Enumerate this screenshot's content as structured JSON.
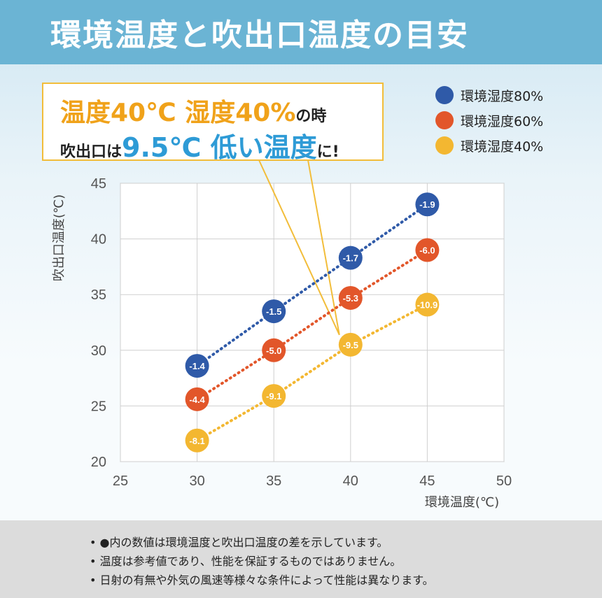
{
  "header": {
    "title": "環境温度と吹出口温度の目安"
  },
  "callout": {
    "line1_highlight": "温度40℃ 湿度40%",
    "line1_tail": "の時",
    "line2_head": "吹出口は",
    "line2_highlight": "9.5℃ 低い温度",
    "line2_tail": "に!"
  },
  "legend": [
    {
      "label": "環境湿度80%",
      "color": "#2f5aa8"
    },
    {
      "label": "環境湿度60%",
      "color": "#e2562a"
    },
    {
      "label": "環境湿度40%",
      "color": "#f3b731"
    }
  ],
  "chart_data": {
    "type": "scatter",
    "xlabel": "環境温度(℃)",
    "ylabel": "吹出口温度(℃)",
    "xlim": [
      25,
      50
    ],
    "ylim": [
      20,
      45
    ],
    "xticks": [
      "25",
      "30",
      "35",
      "40",
      "45",
      "50"
    ],
    "yticks": [
      "20",
      "25",
      "30",
      "35",
      "40",
      "45"
    ],
    "grid": true,
    "legend_position": "top-right",
    "series": [
      {
        "name": "環境湿度80%",
        "color": "#2f5aa8",
        "points": [
          {
            "x": 30,
            "y": 28.6,
            "label": "-1.4"
          },
          {
            "x": 35,
            "y": 33.5,
            "label": "-1.5"
          },
          {
            "x": 40,
            "y": 38.3,
            "label": "-1.7"
          },
          {
            "x": 45,
            "y": 43.1,
            "label": "-1.9"
          }
        ]
      },
      {
        "name": "環境湿度60%",
        "color": "#e2562a",
        "points": [
          {
            "x": 30,
            "y": 25.6,
            "label": "-4.4"
          },
          {
            "x": 35,
            "y": 30.0,
            "label": "-5.0"
          },
          {
            "x": 40,
            "y": 34.7,
            "label": "-5.3"
          },
          {
            "x": 45,
            "y": 39.0,
            "label": "-6.0"
          }
        ]
      },
      {
        "name": "環境湿度40%",
        "color": "#f3b731",
        "points": [
          {
            "x": 30,
            "y": 21.9,
            "label": "-8.1"
          },
          {
            "x": 35,
            "y": 25.9,
            "label": "-9.1"
          },
          {
            "x": 40,
            "y": 30.5,
            "label": "-9.5"
          },
          {
            "x": 45,
            "y": 34.1,
            "label": "-10.9"
          }
        ]
      }
    ]
  },
  "notes": [
    "●内の数値は環境温度と吹出口温度の差を示しています。",
    "温度は参考値であり、性能を保証するものではありません。",
    "日射の有無や外気の風速等様々な条件によって性能は異なります。"
  ]
}
